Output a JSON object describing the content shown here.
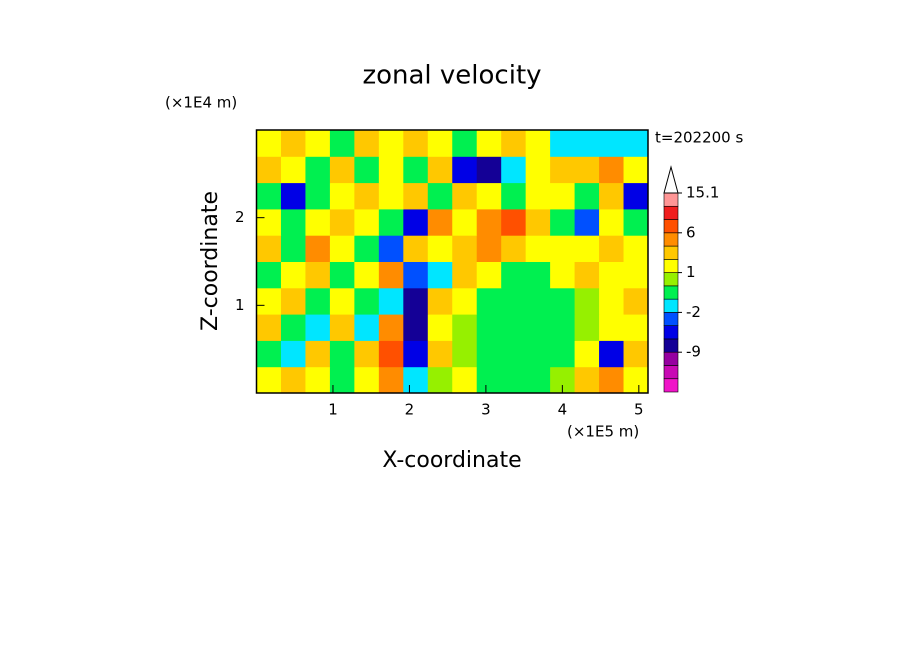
{
  "chart_data": {
    "type": "contour",
    "title": "zonal velocity",
    "time_label": "t=202200 s",
    "xlabel": "X-coordinate",
    "ylabel": "Z-coordinate",
    "x_unit": "(×1E5 m)",
    "y_unit": "(×1E4 m)",
    "xlim": [
      0,
      5.12
    ],
    "ylim": [
      0,
      3
    ],
    "xticks": [
      1,
      2,
      3,
      4,
      5
    ],
    "yticks": [
      1,
      2
    ],
    "x": [
      0.16,
      0.48,
      0.8,
      1.12,
      1.44,
      1.76,
      2.08,
      2.4,
      2.72,
      3.04,
      3.36,
      3.68,
      4.0,
      4.32,
      4.64,
      4.96
    ],
    "y": [
      0.15,
      0.45,
      0.75,
      1.05,
      1.35,
      1.65,
      1.95,
      2.25,
      2.55,
      2.85
    ],
    "values": [
      [
        1.5,
        3,
        1.5,
        -0.5,
        1.5,
        5,
        -1.5,
        0.5,
        1.5,
        -0.5,
        -0.5,
        -0.5,
        0.5,
        3,
        5,
        1.5
      ],
      [
        -0.5,
        -1.5,
        3,
        -0.5,
        3,
        7,
        -5,
        3,
        0.5,
        -0.5,
        -0.5,
        -0.5,
        -0.5,
        1.5,
        -5,
        3
      ],
      [
        3,
        -0.5,
        -1.5,
        3,
        -1.5,
        5,
        -7,
        1.5,
        0.5,
        -0.5,
        -0.5,
        -0.5,
        -0.5,
        0.5,
        1.5,
        1.5
      ],
      [
        1.5,
        3,
        -0.5,
        1.5,
        -0.5,
        -1.5,
        -7,
        3,
        1.5,
        -0.5,
        -0.5,
        -0.5,
        -0.5,
        0.5,
        1.5,
        3
      ],
      [
        -0.5,
        1.5,
        3,
        -0.5,
        1.5,
        5,
        -3,
        -1.5,
        3,
        1.5,
        -0.5,
        -0.5,
        1.5,
        3,
        1.5,
        1.5
      ],
      [
        3,
        -0.5,
        5,
        1.5,
        -0.5,
        -3,
        3,
        1.5,
        3,
        5,
        3,
        1.5,
        1.5,
        1.5,
        3,
        1.5
      ],
      [
        1.5,
        -0.5,
        1.5,
        3,
        1.5,
        -0.5,
        -5,
        5,
        1.5,
        5,
        7,
        3,
        -0.5,
        -3,
        1.5,
        -0.5
      ],
      [
        -0.5,
        -5,
        -0.5,
        1.5,
        3,
        1.5,
        3,
        -0.5,
        3,
        1.5,
        -0.5,
        1.5,
        1.5,
        -0.5,
        3,
        -5
      ],
      [
        3,
        1.5,
        -0.5,
        3,
        -0.5,
        1.5,
        -0.5,
        3,
        -5,
        -7,
        -1.5,
        1.5,
        3,
        3,
        5,
        1.5
      ],
      [
        1.5,
        3,
        1.5,
        -0.5,
        3,
        1.5,
        3,
        1.5,
        -0.5,
        1.5,
        3,
        1.5,
        -1.5,
        -1.5,
        -1.5,
        -1.5
      ]
    ],
    "colorbar": {
      "levels": [
        -18,
        -15,
        -12,
        -9,
        -6,
        -4,
        -2,
        -1,
        0,
        1,
        2,
        4,
        6,
        9,
        12,
        15.1
      ],
      "colors": [
        "#f014c8",
        "#c80ab4",
        "#9600a0",
        "#140096",
        "#0000e6",
        "#0050ff",
        "#00e6ff",
        "#00f050",
        "#96f000",
        "#ffff00",
        "#ffc800",
        "#ff8c00",
        "#ff5000",
        "#f01e1e",
        "#ff9696"
      ],
      "ticks": [
        15.1,
        6,
        1,
        -2,
        -9
      ]
    }
  }
}
